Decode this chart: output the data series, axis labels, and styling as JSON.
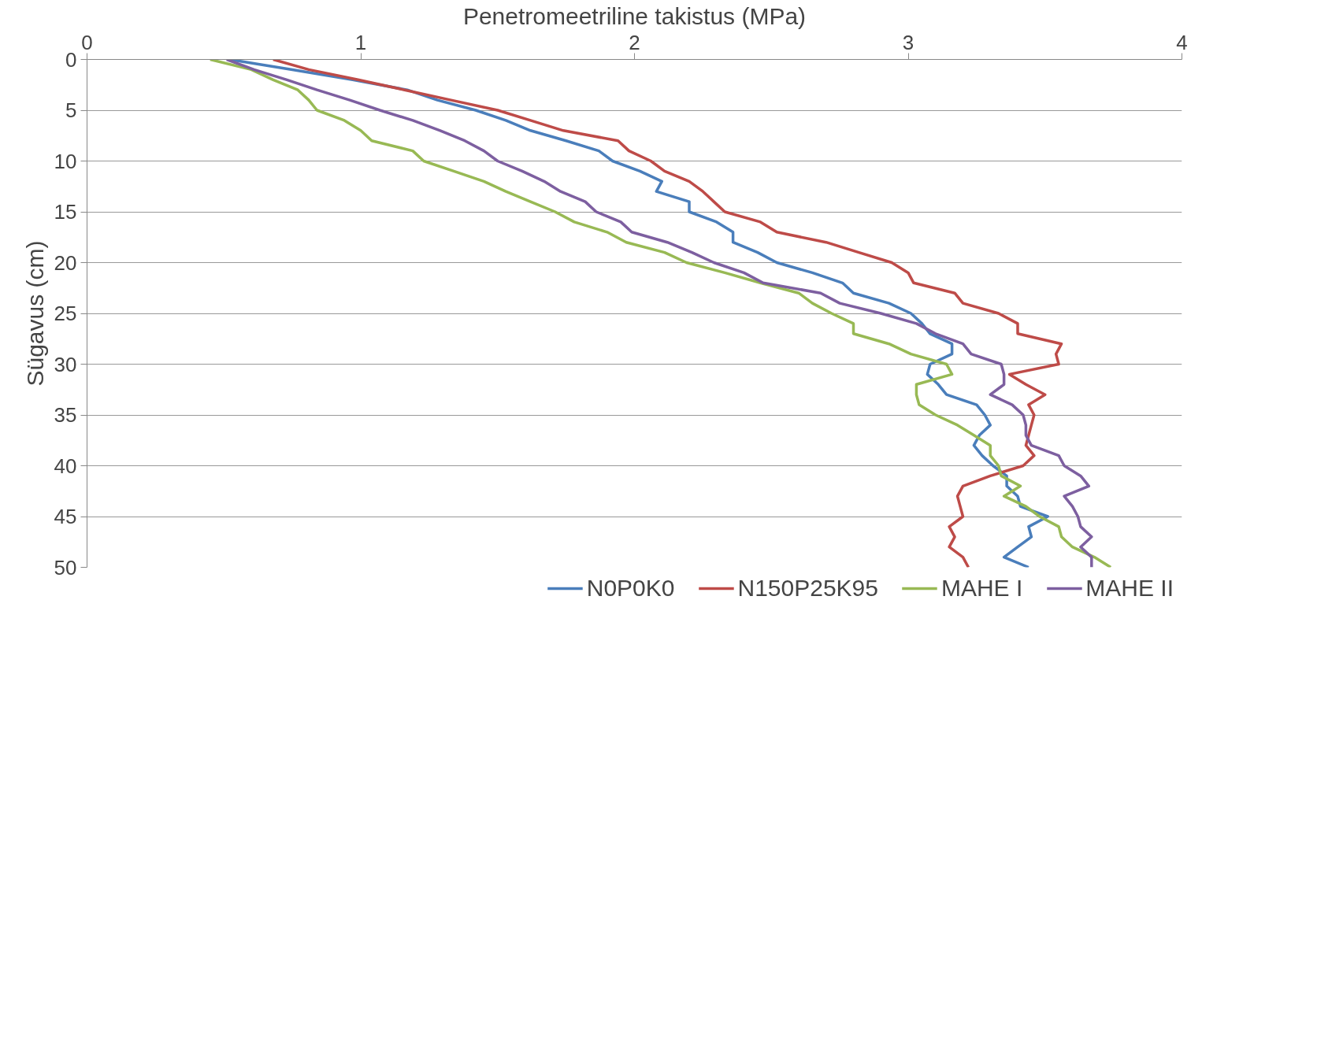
{
  "chart_data": {
    "type": "line",
    "xlabel": "Penetromeetriline takistus (MPa)",
    "ylabel": "Sügavus (cm)",
    "xlim": [
      0,
      4
    ],
    "xticks": [
      0,
      1,
      2,
      3,
      4
    ],
    "ylim": [
      50,
      0
    ],
    "yticks": [
      0,
      5,
      10,
      15,
      20,
      25,
      30,
      35,
      40,
      45,
      50
    ],
    "grid": "y",
    "legend": "bottom",
    "marker": "none",
    "line_style": "solid",
    "series": [
      {
        "name": "N0P0K0",
        "color": "#4a7ebb",
        "x": [
          0.52,
          0.75,
          0.97,
          1.17,
          1.28,
          1.42,
          1.53,
          1.62,
          1.75,
          1.87,
          1.92,
          2.02,
          2.1,
          2.08,
          2.2,
          2.2,
          2.3,
          2.36,
          2.36,
          2.45,
          2.52,
          2.65,
          2.76,
          2.8,
          2.93,
          3.01,
          3.05,
          3.08,
          3.16,
          3.16,
          3.08,
          3.07,
          3.11,
          3.14,
          3.25,
          3.28,
          3.3,
          3.26,
          3.24,
          3.27,
          3.31,
          3.36,
          3.36,
          3.4,
          3.41,
          3.51,
          3.44,
          3.45,
          3.4,
          3.35,
          3.44
        ],
        "values": [
          0,
          1,
          2,
          3,
          4,
          5,
          6,
          7,
          8,
          9,
          10,
          11,
          12,
          13,
          14,
          15,
          16,
          17,
          18,
          19,
          20,
          21,
          22,
          23,
          24,
          25,
          26,
          27,
          28,
          29,
          30,
          31,
          32,
          33,
          34,
          35,
          36,
          37,
          38,
          39,
          40,
          41,
          42,
          43,
          44,
          45,
          46,
          47,
          48,
          49,
          50
        ]
      },
      {
        "name": "N150P25K95",
        "color": "#be4b48",
        "x": [
          0.68,
          0.81,
          0.99,
          1.16,
          1.33,
          1.5,
          1.62,
          1.74,
          1.94,
          1.98,
          2.06,
          2.11,
          2.2,
          2.25,
          2.29,
          2.33,
          2.46,
          2.52,
          2.7,
          2.82,
          2.94,
          3.0,
          3.02,
          3.17,
          3.2,
          3.33,
          3.4,
          3.4,
          3.56,
          3.54,
          3.55,
          3.37,
          3.43,
          3.5,
          3.44,
          3.46,
          3.45,
          3.44,
          3.43,
          3.46,
          3.42,
          3.3,
          3.2,
          3.18,
          3.19,
          3.2,
          3.15,
          3.17,
          3.15,
          3.2,
          3.22
        ],
        "values": [
          0,
          1,
          2,
          3,
          4,
          5,
          6,
          7,
          8,
          9,
          10,
          11,
          12,
          13,
          14,
          15,
          16,
          17,
          18,
          19,
          20,
          21,
          22,
          23,
          24,
          25,
          26,
          27,
          28,
          29,
          30,
          31,
          32,
          33,
          34,
          35,
          36,
          37,
          38,
          39,
          40,
          41,
          42,
          43,
          44,
          45,
          46,
          47,
          48,
          49,
          50
        ]
      },
      {
        "name": "MAHE I",
        "color": "#98b954",
        "x": [
          0.45,
          0.6,
          0.68,
          0.77,
          0.81,
          0.84,
          0.94,
          1.0,
          1.04,
          1.19,
          1.23,
          1.34,
          1.45,
          1.53,
          1.62,
          1.71,
          1.78,
          1.9,
          1.97,
          2.11,
          2.19,
          2.33,
          2.46,
          2.6,
          2.65,
          2.72,
          2.8,
          2.8,
          2.93,
          3.01,
          3.14,
          3.16,
          3.03,
          3.03,
          3.04,
          3.1,
          3.18,
          3.24,
          3.3,
          3.3,
          3.33,
          3.34,
          3.41,
          3.35,
          3.43,
          3.48,
          3.55,
          3.56,
          3.6,
          3.68,
          3.74
        ],
        "values": [
          0,
          1,
          2,
          3,
          4,
          5,
          6,
          7,
          8,
          9,
          10,
          11,
          12,
          13,
          14,
          15,
          16,
          17,
          18,
          19,
          20,
          21,
          22,
          23,
          24,
          25,
          26,
          27,
          28,
          29,
          30,
          31,
          32,
          33,
          34,
          35,
          36,
          37,
          38,
          39,
          40,
          41,
          42,
          43,
          44,
          45,
          46,
          47,
          48,
          49,
          50
        ]
      },
      {
        "name": "MAHE II",
        "color": "#7d5fa0",
        "x": [
          0.51,
          0.61,
          0.73,
          0.84,
          0.96,
          1.07,
          1.19,
          1.29,
          1.38,
          1.45,
          1.5,
          1.59,
          1.67,
          1.73,
          1.82,
          1.86,
          1.95,
          1.99,
          2.12,
          2.21,
          2.29,
          2.4,
          2.47,
          2.68,
          2.75,
          2.9,
          3.03,
          3.1,
          3.2,
          3.23,
          3.34,
          3.35,
          3.35,
          3.3,
          3.38,
          3.42,
          3.43,
          3.43,
          3.45,
          3.55,
          3.57,
          3.63,
          3.66,
          3.57,
          3.6,
          3.62,
          3.63,
          3.67,
          3.63,
          3.67,
          3.67
        ],
        "values": [
          0,
          1,
          2,
          3,
          4,
          5,
          6,
          7,
          8,
          9,
          10,
          11,
          12,
          13,
          14,
          15,
          16,
          17,
          18,
          19,
          20,
          21,
          22,
          23,
          24,
          25,
          26,
          27,
          28,
          29,
          30,
          31,
          32,
          33,
          34,
          35,
          36,
          37,
          38,
          39,
          40,
          41,
          42,
          43,
          44,
          45,
          46,
          47,
          48,
          49,
          50
        ]
      }
    ]
  }
}
